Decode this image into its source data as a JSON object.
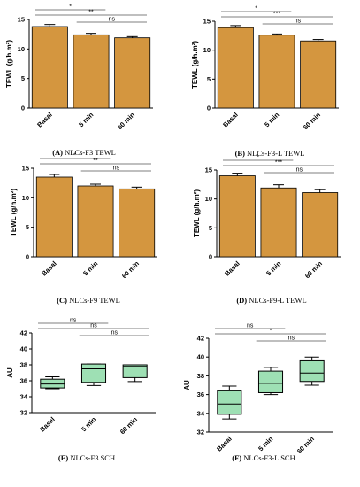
{
  "colors": {
    "bar": "#d4963f",
    "box": "#9ee0b4",
    "line": "#000000",
    "sig": "#555555"
  },
  "chart_data": [
    {
      "type": "bar",
      "categories": [
        "Basal",
        "5 min",
        "60 min"
      ],
      "values": [
        13.8,
        12.4,
        11.9
      ],
      "errors": [
        0.35,
        0.25,
        0.2
      ],
      "ylabel": "TEWL (g/h.m²)",
      "ylim": [
        0,
        15
      ],
      "yticks": [
        "0",
        "5",
        "10",
        "15"
      ],
      "comparisons": [
        {
          "from": 0,
          "to": 1,
          "label": "*"
        },
        {
          "from": 0,
          "to": 2,
          "label": "**"
        },
        {
          "from": 1,
          "to": 2,
          "label": "ns"
        }
      ],
      "caption_letter": "(A)",
      "caption_text": "NLCs-F3 TEWL"
    },
    {
      "type": "bar",
      "categories": [
        "Basal",
        "5 min",
        "60 min"
      ],
      "values": [
        13.9,
        12.6,
        11.6
      ],
      "errors": [
        0.35,
        0.2,
        0.25
      ],
      "ylabel": "TEWL (g/h.m²)",
      "ylim": [
        0,
        15
      ],
      "yticks": [
        "0",
        "5",
        "10",
        "15"
      ],
      "comparisons": [
        {
          "from": 0,
          "to": 1,
          "label": "*"
        },
        {
          "from": 0,
          "to": 2,
          "label": "***"
        },
        {
          "from": 1,
          "to": 2,
          "label": "ns"
        }
      ],
      "caption_letter": "(B)",
      "caption_text": "NLCs-F3-L TEWL"
    },
    {
      "type": "bar",
      "categories": [
        "Basal",
        "5 min",
        "60 min"
      ],
      "values": [
        13.5,
        12.0,
        11.5
      ],
      "errors": [
        0.45,
        0.3,
        0.3
      ],
      "ylabel": "TEWL (g/h.m²)",
      "ylim": [
        0,
        15
      ],
      "yticks": [
        "0",
        "5",
        "10",
        "15"
      ],
      "comparisons": [
        {
          "from": 0,
          "to": 1,
          "label": "*"
        },
        {
          "from": 0,
          "to": 2,
          "label": "**"
        },
        {
          "from": 1,
          "to": 2,
          "label": "ns"
        }
      ],
      "caption_letter": "(C)",
      "caption_text": "NLCs-F9 TEWL"
    },
    {
      "type": "bar",
      "categories": [
        "Basal",
        "5 min",
        "60 min"
      ],
      "values": [
        14.0,
        11.9,
        11.1
      ],
      "errors": [
        0.45,
        0.55,
        0.5
      ],
      "ylabel": "TEWL (g/h.m²)",
      "ylim": [
        0,
        15
      ],
      "yticks": [
        "0",
        "5",
        "10",
        "15"
      ],
      "comparisons": [
        {
          "from": 0,
          "to": 1,
          "label": "*"
        },
        {
          "from": 0,
          "to": 2,
          "label": "***"
        },
        {
          "from": 1,
          "to": 2,
          "label": "ns"
        }
      ],
      "caption_letter": "(D)",
      "caption_text": "NLCs-F9-L TEWL"
    },
    {
      "type": "box",
      "categories": [
        "Basal",
        "5 min",
        "60 min"
      ],
      "boxes": [
        {
          "min": 35.0,
          "q1": 35.1,
          "median": 35.6,
          "q3": 36.2,
          "max": 36.5
        },
        {
          "min": 35.4,
          "q1": 35.8,
          "median": 37.5,
          "q3": 38.1,
          "max": 38.1
        },
        {
          "min": 35.9,
          "q1": 36.4,
          "median": 37.8,
          "q3": 38.0,
          "max": 38.0
        }
      ],
      "ylabel": "AU",
      "ylim": [
        32,
        42
      ],
      "yticks": [
        "32",
        "34",
        "36",
        "38",
        "40",
        "42"
      ],
      "comparisons": [
        {
          "from": 0,
          "to": 1,
          "label": "ns"
        },
        {
          "from": 0,
          "to": 2,
          "label": "ns"
        },
        {
          "from": 1,
          "to": 2,
          "label": "ns"
        }
      ],
      "caption_letter": "(E)",
      "caption_text": "NLCs-F3 SCH"
    },
    {
      "type": "box",
      "categories": [
        "Basal",
        "5 min",
        "60 min"
      ],
      "boxes": [
        {
          "min": 33.4,
          "q1": 33.9,
          "median": 35.0,
          "q3": 36.4,
          "max": 36.9
        },
        {
          "min": 36.0,
          "q1": 36.2,
          "median": 37.2,
          "q3": 38.5,
          "max": 38.9
        },
        {
          "min": 37.0,
          "q1": 37.4,
          "median": 38.3,
          "q3": 39.6,
          "max": 40.0
        }
      ],
      "ylabel": "AU",
      "ylim": [
        32,
        42
      ],
      "yticks": [
        "32",
        "34",
        "36",
        "38",
        "40",
        "42"
      ],
      "comparisons": [
        {
          "from": 0,
          "to": 1,
          "label": "ns"
        },
        {
          "from": 0,
          "to": 2,
          "label": "*"
        },
        {
          "from": 1,
          "to": 2,
          "label": "ns"
        }
      ],
      "caption_letter": "(F)",
      "caption_text": "NLCs-F3-L SCH"
    }
  ]
}
